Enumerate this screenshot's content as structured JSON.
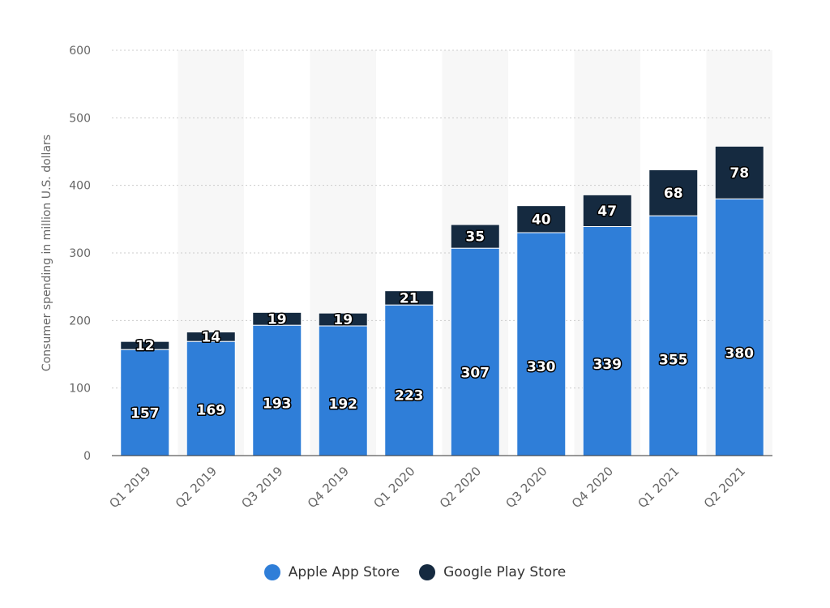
{
  "chart_data": {
    "type": "bar",
    "stacked": true,
    "ylabel": "Consumer spending in million U.S. dollars",
    "ylim": [
      0,
      600
    ],
    "yticks": [
      0,
      100,
      200,
      300,
      400,
      500,
      600
    ],
    "grid": true,
    "legend_position": "bottom",
    "categories": [
      "Q1 2019",
      "Q2 2019",
      "Q3 2019",
      "Q4 2019",
      "Q1 2020",
      "Q2 2020",
      "Q3 2020",
      "Q4 2020",
      "Q1 2021",
      "Q2 2021"
    ],
    "series": [
      {
        "name": "Apple App Store",
        "color": "#2f7ed8",
        "values": [
          157,
          169,
          193,
          192,
          223,
          307,
          330,
          339,
          355,
          380
        ]
      },
      {
        "name": "Google Play Store",
        "color": "#152a40",
        "values": [
          12,
          14,
          19,
          19,
          21,
          35,
          40,
          47,
          68,
          78
        ]
      }
    ]
  }
}
